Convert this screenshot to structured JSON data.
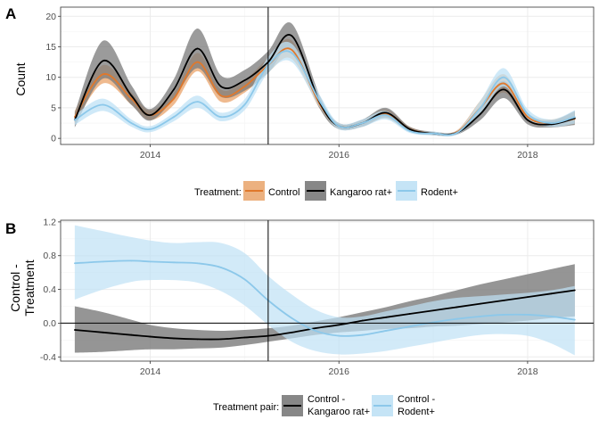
{
  "colors": {
    "control": "#E0782B",
    "control_ribbon": "#E9A36A",
    "kangaroo": "#000000",
    "kangaroo_ribbon": "#7A7A7A",
    "rodent": "#8CC8EA",
    "rodent_ribbon": "#BFE1F5",
    "grid": "#ebebeb",
    "border": "#333333"
  },
  "panel_a": {
    "letter": "A",
    "legend_title": "Treatment:",
    "legend_items": [
      "Control",
      "Kangaroo rat+",
      "Rodent+"
    ]
  },
  "panel_b": {
    "letter": "B",
    "legend_title": "Treatment pair:",
    "legend_items": [
      {
        "line1": "Control -",
        "line2": "Kangaroo rat+"
      },
      {
        "line1": "Control -",
        "line2": "Rodent+"
      }
    ]
  },
  "chart_data": [
    {
      "type": "line",
      "panel": "A",
      "ylabel": "Count",
      "xlabel": "",
      "xlim": [
        2013.05,
        2018.7
      ],
      "ylim": [
        -1,
        21.5
      ],
      "x_ticks": [
        2014,
        2016,
        2018
      ],
      "y_ticks": [
        0,
        5,
        10,
        15,
        20
      ],
      "vline_x": 2015.25,
      "grid": true,
      "legend_position": "bottom",
      "series": [
        {
          "name": "Control",
          "x": [
            2013.2,
            2013.5,
            2013.8,
            2014.0,
            2014.25,
            2014.5,
            2014.75,
            2015.0,
            2015.25,
            2015.5,
            2015.8,
            2016.0,
            2016.25,
            2016.5,
            2016.75,
            2017.0,
            2017.25,
            2017.5,
            2017.75,
            2018.0,
            2018.25,
            2018.5
          ],
          "y": [
            3.5,
            10.5,
            6.5,
            3.8,
            6.5,
            12.5,
            7.0,
            8.5,
            12.0,
            14.5,
            5.5,
            2.0,
            2.5,
            4.0,
            1.5,
            0.8,
            1.0,
            5.0,
            9.0,
            3.5,
            2.5,
            3.2
          ],
          "lower": [
            2.5,
            9.0,
            5.5,
            3.0,
            5.5,
            11.0,
            6.0,
            7.5,
            10.8,
            13.0,
            4.8,
            1.6,
            2.0,
            3.3,
            1.1,
            0.6,
            0.7,
            4.0,
            7.5,
            2.8,
            2.0,
            2.3
          ],
          "upper": [
            4.5,
            12.0,
            7.5,
            4.6,
            7.5,
            14.0,
            8.0,
            9.5,
            13.2,
            16.0,
            6.2,
            2.4,
            3.0,
            4.7,
            1.9,
            1.0,
            1.3,
            6.2,
            10.5,
            4.2,
            3.1,
            4.3
          ]
        },
        {
          "name": "Kangaroo rat+",
          "x": [
            2013.2,
            2013.5,
            2013.8,
            2014.0,
            2014.25,
            2014.5,
            2014.75,
            2015.0,
            2015.25,
            2015.5,
            2015.8,
            2016.0,
            2016.25,
            2016.5,
            2016.75,
            2017.0,
            2017.25,
            2017.5,
            2017.75,
            2018.0,
            2018.25,
            2018.5
          ],
          "y": [
            3.0,
            12.7,
            7.0,
            3.8,
            8.0,
            14.7,
            8.5,
            9.5,
            12.5,
            16.8,
            5.8,
            2.0,
            2.5,
            4.2,
            1.5,
            0.8,
            0.9,
            4.0,
            8.0,
            3.0,
            2.3,
            3.3
          ],
          "lower": [
            1.8,
            9.8,
            5.5,
            2.9,
            6.5,
            11.5,
            6.8,
            7.8,
            10.7,
            14.7,
            4.8,
            1.5,
            1.9,
            3.4,
            1.1,
            0.5,
            0.6,
            3.0,
            6.6,
            2.3,
            1.8,
            2.2
          ],
          "upper": [
            4.2,
            16.0,
            8.7,
            4.8,
            9.7,
            18.0,
            10.3,
            11.2,
            14.3,
            18.8,
            6.9,
            2.5,
            3.1,
            5.0,
            1.9,
            1.1,
            1.2,
            5.0,
            9.4,
            3.8,
            2.9,
            4.5
          ]
        },
        {
          "name": "Rodent+",
          "x": [
            2013.2,
            2013.5,
            2013.8,
            2014.0,
            2014.25,
            2014.5,
            2014.75,
            2015.0,
            2015.25,
            2015.5,
            2015.8,
            2016.0,
            2016.25,
            2016.5,
            2016.75,
            2017.0,
            2017.25,
            2017.5,
            2017.75,
            2018.0,
            2018.25,
            2018.5
          ],
          "y": [
            3.0,
            5.5,
            2.5,
            1.5,
            3.5,
            6.0,
            3.5,
            5.5,
            12.0,
            14.0,
            6.0,
            2.0,
            2.5,
            3.8,
            1.2,
            0.8,
            0.9,
            5.0,
            10.0,
            4.0,
            2.5,
            3.5
          ],
          "lower": [
            2.2,
            4.5,
            1.9,
            1.0,
            2.8,
            5.0,
            2.8,
            4.6,
            10.7,
            12.5,
            5.0,
            1.5,
            1.9,
            3.1,
            0.9,
            0.5,
            0.6,
            4.0,
            8.5,
            3.2,
            1.9,
            2.4
          ],
          "upper": [
            3.8,
            6.5,
            3.1,
            2.0,
            4.2,
            7.0,
            4.2,
            6.4,
            13.3,
            15.5,
            7.0,
            2.5,
            3.1,
            4.5,
            1.5,
            1.1,
            1.2,
            6.2,
            11.5,
            4.8,
            3.1,
            4.6
          ]
        }
      ]
    },
    {
      "type": "line",
      "panel": "B",
      "ylabel": "Control -\nTreatment",
      "xlabel": "",
      "xlim": [
        2013.05,
        2018.7
      ],
      "ylim": [
        -0.45,
        1.22
      ],
      "x_ticks": [
        2014,
        2016,
        2018
      ],
      "y_ticks": [
        -0.4,
        0.0,
        0.4,
        0.8,
        1.2
      ],
      "y_tick_labels": [
        "-0.4",
        "0.0",
        "0.4",
        "0.8",
        "1.2"
      ],
      "vline_x": 2015.25,
      "hline_y": 0,
      "grid": true,
      "legend_position": "bottom",
      "series": [
        {
          "name": "Control - Kangaroo rat+",
          "x": [
            2013.2,
            2013.5,
            2013.8,
            2014.0,
            2014.25,
            2014.5,
            2014.75,
            2015.0,
            2015.25,
            2015.5,
            2015.75,
            2016.0,
            2016.25,
            2016.5,
            2016.75,
            2017.0,
            2017.25,
            2017.5,
            2017.75,
            2018.0,
            2018.25,
            2018.5
          ],
          "y": [
            -0.08,
            -0.11,
            -0.14,
            -0.16,
            -0.18,
            -0.19,
            -0.19,
            -0.17,
            -0.15,
            -0.11,
            -0.06,
            -0.02,
            0.03,
            0.07,
            0.11,
            0.15,
            0.19,
            0.23,
            0.27,
            0.31,
            0.35,
            0.39
          ],
          "lower": [
            -0.35,
            -0.34,
            -0.32,
            -0.31,
            -0.31,
            -0.3,
            -0.29,
            -0.26,
            -0.22,
            -0.18,
            -0.14,
            -0.11,
            -0.09,
            -0.07,
            -0.06,
            -0.04,
            -0.03,
            -0.01,
            0.01,
            0.03,
            0.06,
            0.08
          ],
          "upper": [
            0.2,
            0.13,
            0.04,
            -0.02,
            -0.06,
            -0.08,
            -0.09,
            -0.08,
            -0.06,
            -0.03,
            0.02,
            0.07,
            0.13,
            0.19,
            0.26,
            0.32,
            0.39,
            0.46,
            0.52,
            0.58,
            0.64,
            0.7
          ]
        },
        {
          "name": "Control - Rodent+",
          "x": [
            2013.2,
            2013.5,
            2013.8,
            2014.0,
            2014.25,
            2014.5,
            2014.75,
            2015.0,
            2015.25,
            2015.5,
            2015.75,
            2016.0,
            2016.25,
            2016.5,
            2016.75,
            2017.0,
            2017.25,
            2017.5,
            2017.75,
            2018.0,
            2018.25,
            2018.5
          ],
          "y": [
            0.71,
            0.73,
            0.74,
            0.73,
            0.72,
            0.71,
            0.66,
            0.52,
            0.27,
            0.06,
            -0.09,
            -0.15,
            -0.14,
            -0.09,
            -0.04,
            0.01,
            0.05,
            0.08,
            0.1,
            0.1,
            0.08,
            0.04
          ],
          "lower": [
            0.28,
            0.4,
            0.49,
            0.51,
            0.51,
            0.48,
            0.38,
            0.21,
            -0.02,
            -0.22,
            -0.33,
            -0.37,
            -0.36,
            -0.33,
            -0.28,
            -0.23,
            -0.18,
            -0.14,
            -0.13,
            -0.15,
            -0.24,
            -0.38
          ],
          "upper": [
            1.16,
            1.09,
            1.02,
            0.98,
            0.95,
            0.96,
            0.95,
            0.83,
            0.56,
            0.34,
            0.16,
            0.07,
            0.08,
            0.14,
            0.2,
            0.26,
            0.3,
            0.32,
            0.34,
            0.36,
            0.39,
            0.44
          ]
        }
      ]
    }
  ]
}
